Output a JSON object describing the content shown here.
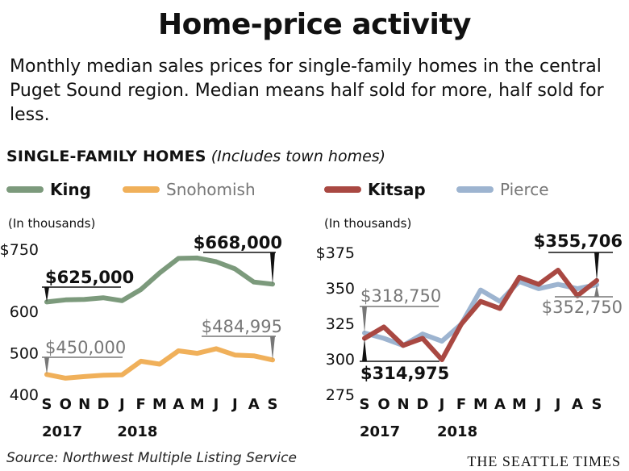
{
  "title": "Home-price activity",
  "subtitle": "Monthly median sales prices for single-family homes in the central Puget Sound region. Median means half sold for more, half sold for less.",
  "section_title": "SINGLE-FAMILY HOMES",
  "section_note": "(Includes town homes)",
  "source": "Source: Northwest Multiple Listing Service",
  "brand": "THE SEATTLE TIMES",
  "colors": {
    "King": "#7c9a7c",
    "Snohomish": "#f0b05a",
    "Kitsap": "#a94842",
    "Pierce": "#9db4d0"
  },
  "legend": [
    "King",
    "Snohomish",
    "Kitsap",
    "Pierce"
  ],
  "chart_data": [
    {
      "type": "line",
      "unit_label": "(In thousands)",
      "x": [
        "S",
        "O",
        "N",
        "D",
        "J",
        "F",
        "M",
        "A",
        "M",
        "J",
        "J",
        "A",
        "S"
      ],
      "year_labels": [
        {
          "label": "2017",
          "at": 0
        },
        {
          "label": "2018",
          "at": 4
        }
      ],
      "ylim": [
        400,
        760
      ],
      "yticks": [
        400,
        500,
        600
      ],
      "ytick_labels": [
        "400",
        "500",
        "600"
      ],
      "top_tick": {
        "value": 750,
        "label": "$750"
      },
      "series": [
        {
          "name": "King",
          "values": [
            625,
            630,
            631,
            635,
            628,
            655,
            695,
            730,
            731,
            722,
            705,
            673,
            668
          ]
        },
        {
          "name": "Snohomish",
          "values": [
            450,
            441,
            445,
            448,
            449,
            482,
            475,
            507,
            501,
            512,
            497,
            495,
            485
          ]
        }
      ],
      "annotations": [
        {
          "text": "$625,000",
          "series": "King",
          "index": 0,
          "bold": true
        },
        {
          "text": "$668,000",
          "series": "King",
          "index": 12,
          "bold": true
        },
        {
          "text": "$450,000",
          "series": "Snohomish",
          "index": 0,
          "bold": false
        },
        {
          "text": "$484,995",
          "series": "Snohomish",
          "index": 12,
          "bold": false
        }
      ]
    },
    {
      "type": "line",
      "unit_label": "(In thousands)",
      "x": [
        "S",
        "O",
        "N",
        "D",
        "J",
        "F",
        "M",
        "A",
        "M",
        "J",
        "J",
        "A",
        "S"
      ],
      "year_labels": [
        {
          "label": "2017",
          "at": 0
        },
        {
          "label": "2018",
          "at": 4
        }
      ],
      "ylim": [
        275,
        380
      ],
      "yticks": [
        275,
        300,
        325,
        350
      ],
      "ytick_labels": [
        "275",
        "300",
        "325",
        "350"
      ],
      "top_tick": {
        "value": 375,
        "label": "$375"
      },
      "series": [
        {
          "name": "Kitsap",
          "values": [
            315,
            323,
            310,
            315,
            300,
            325,
            341,
            336,
            358,
            353,
            363,
            345,
            355.7
          ]
        },
        {
          "name": "Pierce",
          "values": [
            318.75,
            315,
            310,
            318,
            313,
            325,
            349,
            341,
            355,
            350,
            353,
            350,
            352.75
          ]
        }
      ],
      "annotations": [
        {
          "text": "$318,750",
          "series": "Pierce",
          "index": 0,
          "bold": false
        },
        {
          "text": "$314,975",
          "series": "Kitsap",
          "index": 0,
          "bold": true
        },
        {
          "text": "$355,706",
          "series": "Kitsap",
          "index": 12,
          "bold": true
        },
        {
          "text": "$352,750",
          "series": "Pierce",
          "index": 12,
          "bold": false
        }
      ]
    }
  ]
}
